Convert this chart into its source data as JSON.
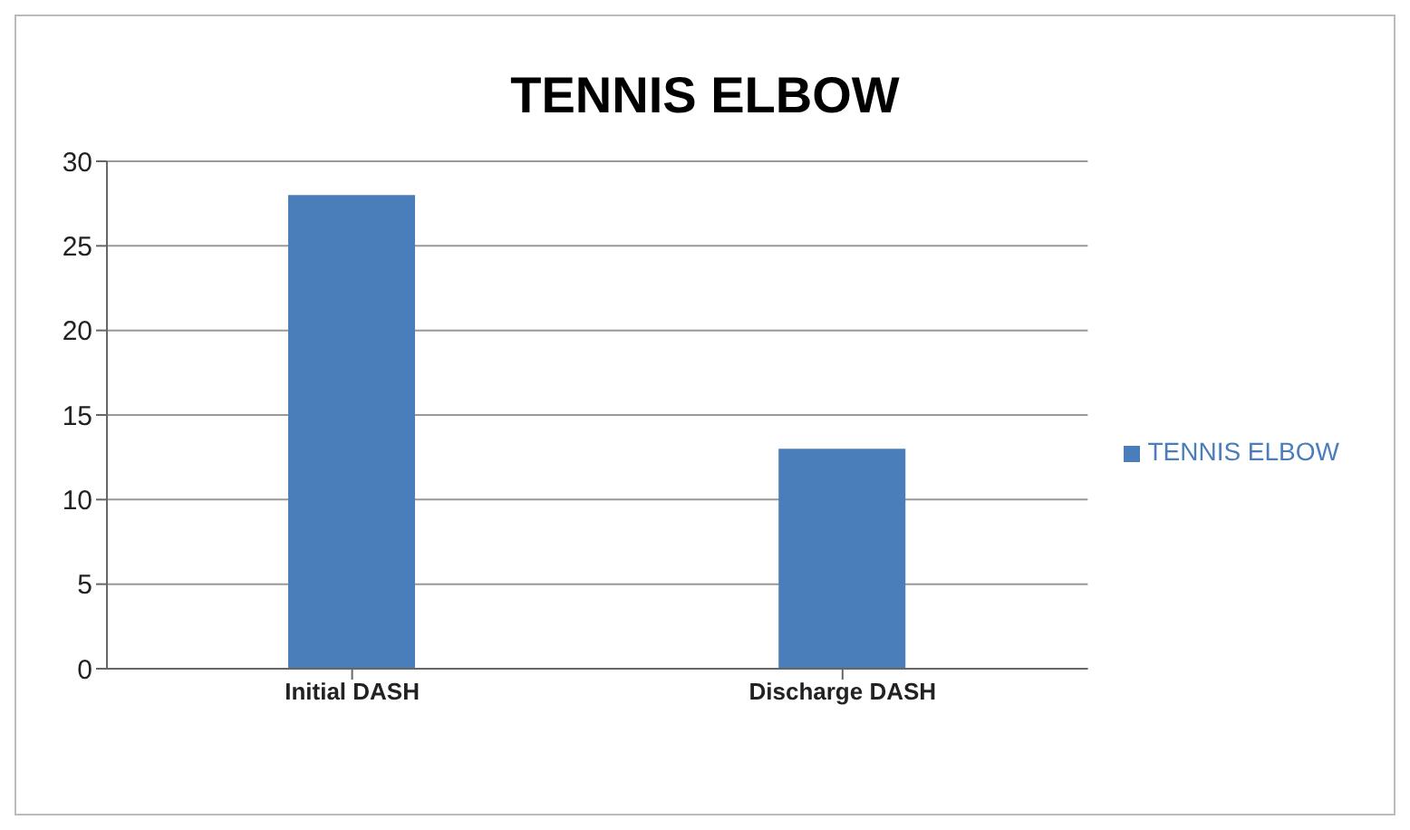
{
  "chart_data": {
    "type": "bar",
    "title": "TENNIS ELBOW",
    "categories": [
      "Initial DASH",
      "Discharge DASH"
    ],
    "series": [
      {
        "name": "TENNIS  ELBOW",
        "color": "#4a7ebb",
        "values": [
          28,
          13
        ]
      }
    ],
    "ylim": [
      0,
      30
    ],
    "yticks": [
      0,
      5,
      10,
      15,
      20,
      25,
      30
    ],
    "grid": "y",
    "legend": "right"
  }
}
